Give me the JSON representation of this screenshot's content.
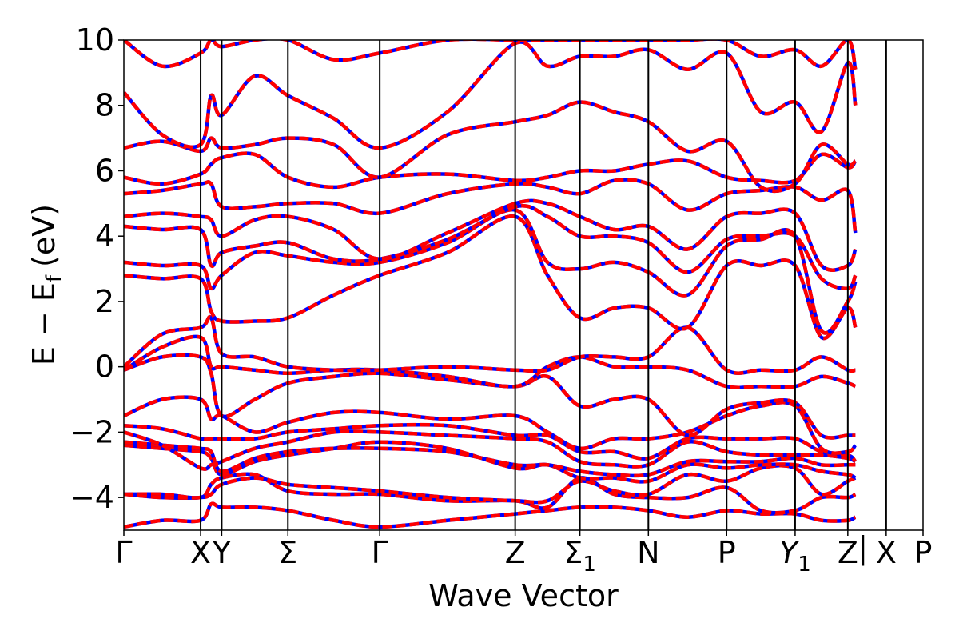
{
  "chart_data": {
    "type": "line",
    "xlabel": "Wave Vector",
    "ylabel": "E − E_f (eV)",
    "ylabel_parts": {
      "main": "E − E",
      "sub": "f",
      "unit": "(eV)"
    },
    "ylim": [
      -5,
      10
    ],
    "yticks": [
      -4,
      -2,
      0,
      2,
      4,
      6,
      8,
      10
    ],
    "ytick_labels": [
      "−4",
      "−2",
      "0",
      "2",
      "4",
      "6",
      "8",
      "10"
    ],
    "grid": false,
    "xlim": [
      0,
      10.62
    ],
    "high_symmetry_points": [
      {
        "label": "Γ",
        "x": 0.0
      },
      {
        "label": "X",
        "x": 1.02
      },
      {
        "label": "Y",
        "x": 1.3
      },
      {
        "label": "Σ",
        "x": 2.18
      },
      {
        "label": "Γ",
        "x": 3.4
      },
      {
        "label": "Z",
        "x": 5.2
      },
      {
        "label": "Σ",
        "sub": "1",
        "x": 6.06
      },
      {
        "label": "N",
        "x": 6.97
      },
      {
        "label": "P",
        "x": 8.01
      },
      {
        "label": "Y",
        "sub": "1",
        "x": 8.92,
        "italic": true
      },
      {
        "label": "Z",
        "x": 9.62
      },
      {
        "label": "|",
        "x": 9.82,
        "is_break": true
      },
      {
        "label": "X",
        "x": 10.13
      },
      {
        "label": "P",
        "x": 10.62
      }
    ],
    "series": [
      {
        "color_solid": "#0000ff",
        "color_dashed": "#ff0000"
      }
    ],
    "bands": [
      [
        -4.9,
        -4.7,
        -4.7,
        -4.2,
        -4.3,
        -4.3,
        -4.4,
        -4.7,
        -4.9,
        -4.7,
        -4.5,
        -4.4,
        -4.3,
        -4.3,
        -4.4,
        -4.6,
        -4.4,
        -4.5,
        -4.5,
        -4.7,
        -4.7,
        -4.6
      ],
      [
        -3.9,
        -3.9,
        -4.0,
        -3.6,
        -3.4,
        -3.3,
        -3.8,
        -3.9,
        -3.9,
        -4.1,
        -4.1,
        -4.3,
        -3.4,
        -3.9,
        -4.0,
        -4.0,
        -3.7,
        -4.4,
        -4.4,
        -4.0,
        -4.0,
        -3.9
      ],
      [
        -3.9,
        -4.0,
        -4.0,
        -3.9,
        -3.6,
        -3.4,
        -3.6,
        -3.7,
        -3.8,
        -4.0,
        -4.1,
        -4.1,
        -3.5,
        -3.8,
        -3.9,
        -3.3,
        -3.5,
        -3.1,
        -3.1,
        -3.9,
        -3.5,
        -3.4
      ],
      [
        -2.4,
        -2.5,
        -2.6,
        -2.8,
        -3.3,
        -2.9,
        -2.7,
        -2.5,
        -2.3,
        -2.5,
        -3.1,
        -3.0,
        -3.4,
        -3.4,
        -3.5,
        -3.0,
        -3.1,
        -3.0,
        -3.0,
        -3.2,
        -3.3,
        -3.4
      ],
      [
        -2.3,
        -2.4,
        -2.5,
        -2.6,
        -3.2,
        -2.8,
        -2.6,
        -2.5,
        -2.5,
        -2.6,
        -3.0,
        -3.0,
        -3.2,
        -3.3,
        -3.3,
        -2.9,
        -2.9,
        -2.9,
        -2.8,
        -3.0,
        -3.0,
        -3.0
      ],
      [
        -2.0,
        -2.4,
        -3.1,
        -3.0,
        -2.9,
        -2.5,
        -2.3,
        -2.0,
        -2.0,
        -2.1,
        -2.2,
        -2.3,
        -2.9,
        -3.0,
        -3.0,
        -2.3,
        -2.6,
        -2.7,
        -2.7,
        -2.7,
        -2.8,
        -2.9
      ],
      [
        -1.8,
        -1.9,
        -2.2,
        -2.2,
        -2.2,
        -2.2,
        -2.0,
        -1.9,
        -1.8,
        -1.8,
        -2.1,
        -2.1,
        -2.6,
        -2.6,
        -2.8,
        -2.2,
        -2.2,
        -2.2,
        -2.2,
        -2.6,
        -2.7,
        -2.9
      ],
      [
        -1.5,
        -1.0,
        -1.0,
        -1.6,
        -1.5,
        -2.0,
        -1.7,
        -1.4,
        -1.4,
        -1.6,
        -1.5,
        -2.0,
        -2.5,
        -2.2,
        -2.2,
        -2.0,
        -1.5,
        -1.2,
        -1.2,
        -2.5,
        -2.6,
        -2.4
      ],
      [
        -0.1,
        0.3,
        0.3,
        -0.2,
        -1.5,
        -1.0,
        -0.5,
        -0.3,
        -0.2,
        -0.4,
        -0.6,
        -0.3,
        -1.2,
        -1.0,
        -1.0,
        -2.1,
        -1.3,
        -1.1,
        -1.1,
        -2.1,
        -2.1,
        -2.1
      ],
      [
        -0.1,
        0.6,
        0.9,
        0.0,
        0.0,
        -0.1,
        -0.2,
        -0.1,
        -0.1,
        -0.3,
        -0.6,
        0.0,
        0.3,
        0.0,
        0.0,
        -0.1,
        -0.6,
        -0.6,
        -0.6,
        -0.3,
        -0.5,
        -0.6
      ],
      [
        0.0,
        1.0,
        1.2,
        1.5,
        0.4,
        0.3,
        0.0,
        -0.1,
        -0.1,
        0.0,
        -0.1,
        -0.1,
        0.3,
        0.3,
        0.3,
        1.2,
        -0.1,
        -0.1,
        -0.1,
        0.3,
        -0.1,
        -0.1
      ],
      [
        2.8,
        2.7,
        2.7,
        1.7,
        1.4,
        1.4,
        1.5,
        2.2,
        2.8,
        3.5,
        4.6,
        2.8,
        1.5,
        1.8,
        1.8,
        1.2,
        3.1,
        3.1,
        3.1,
        0.9,
        1.8,
        1.2
      ],
      [
        3.2,
        3.1,
        3.1,
        2.4,
        2.8,
        3.5,
        3.4,
        3.2,
        3.2,
        3.8,
        4.8,
        3.2,
        3.0,
        3.2,
        2.9,
        2.2,
        3.7,
        3.9,
        4.0,
        1.1,
        2.0,
        2.6
      ],
      [
        4.3,
        4.2,
        4.2,
        3.1,
        3.5,
        3.7,
        3.8,
        3.3,
        3.3,
        3.9,
        4.9,
        4.6,
        4.0,
        4.0,
        3.8,
        2.9,
        3.9,
        4.0,
        4.0,
        2.7,
        2.4,
        2.8
      ],
      [
        4.6,
        4.7,
        4.6,
        4.5,
        4.0,
        4.5,
        4.6,
        4.2,
        3.3,
        4.1,
        5.0,
        5.0,
        4.6,
        4.2,
        4.3,
        3.6,
        4.6,
        4.7,
        4.7,
        3.1,
        3.1,
        3.6
      ],
      [
        5.3,
        5.4,
        5.6,
        5.6,
        4.9,
        4.9,
        5.0,
        5.0,
        4.7,
        5.3,
        5.6,
        5.5,
        5.3,
        5.7,
        5.6,
        4.8,
        5.3,
        5.4,
        5.5,
        5.1,
        5.4,
        4.1
      ],
      [
        5.8,
        5.6,
        5.9,
        6.2,
        6.4,
        6.5,
        5.8,
        5.5,
        5.8,
        5.9,
        5.7,
        5.8,
        6.0,
        6.0,
        6.2,
        6.3,
        5.8,
        5.7,
        5.7,
        6.5,
        6.1,
        6.3
      ],
      [
        6.7,
        6.9,
        6.6,
        7.0,
        6.7,
        6.8,
        7.0,
        6.8,
        5.8,
        7.1,
        7.5,
        7.7,
        8.1,
        7.8,
        7.5,
        6.6,
        6.9,
        5.5,
        5.6,
        6.8,
        6.2,
        6.3
      ],
      [
        8.4,
        7.1,
        6.8,
        8.3,
        7.7,
        8.9,
        8.3,
        7.6,
        6.7,
        7.8,
        9.9,
        9.2,
        9.5,
        9.5,
        9.7,
        9.1,
        9.6,
        7.8,
        8.1,
        7.2,
        9.3,
        8.0
      ],
      [
        10.0,
        9.2,
        9.6,
        10.0,
        9.8,
        10.0,
        10.0,
        9.4,
        9.6,
        10.0,
        10.0,
        10.0,
        10.0,
        10.0,
        10.0,
        10.0,
        10.0,
        9.5,
        9.7,
        9.2,
        10.0,
        9.1
      ]
    ]
  }
}
